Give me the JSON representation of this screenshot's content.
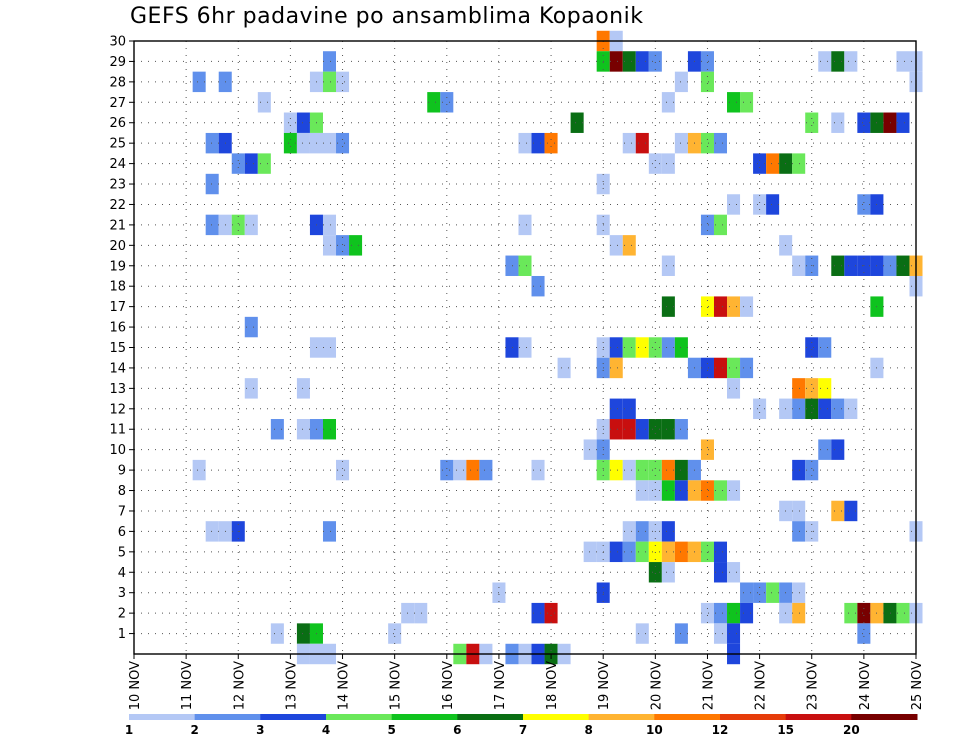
{
  "chart_data": {
    "type": "heatmap",
    "title": "GEFS 6hr padavine po ansamblima Kopaonik",
    "x_tick_labels": [
      "10 NOV",
      "11 NOV",
      "12 NOV",
      "13 NOV",
      "14 NOV",
      "15 NOV",
      "16 NOV",
      "17 NOV",
      "18 NOV",
      "19 NOV",
      "20 NOV",
      "21 NOV",
      "22 NOV",
      "23 NOV",
      "24 NOV",
      "25 NOV"
    ],
    "y_tick_labels": [
      "1",
      "2",
      "3",
      "4",
      "5",
      "6",
      "7",
      "8",
      "9",
      "10",
      "11",
      "12",
      "13",
      "14",
      "15",
      "16",
      "17",
      "18",
      "19",
      "20",
      "21",
      "22",
      "23",
      "24",
      "25",
      "26",
      "27",
      "28",
      "29",
      "30"
    ],
    "x_range_days": [
      10,
      25
    ],
    "steps_per_day": 4,
    "y_range": [
      0,
      30
    ],
    "grid": "dotted",
    "colorbar": {
      "labels": [
        "1",
        "2",
        "3",
        "4",
        "5",
        "6",
        "7",
        "8",
        "10",
        "12",
        "15",
        "20"
      ],
      "colors": [
        "#b4c8f5",
        "#6090ec",
        "#1e46dc",
        "#6ae85a",
        "#0fc31e",
        "#0a6e14",
        "#ffff00",
        "#ffb432",
        "#ff7800",
        "#e63c0a",
        "#c80f0f",
        "#780000"
      ]
    },
    "cells": [
      {
        "member": 30,
        "x": [
          19.0
        ],
        "level": [
          9
        ]
      },
      {
        "member": 30,
        "x": [
          19.25
        ],
        "level": [
          1
        ]
      },
      {
        "member": 29,
        "x": [
          13.75
        ],
        "level": [
          2
        ]
      },
      {
        "member": 29,
        "x": [
          19.0,
          19.25,
          19.5,
          19.75,
          20.0
        ],
        "level": [
          5,
          12,
          6,
          3,
          2
        ]
      },
      {
        "member": 29,
        "x": [
          20.75,
          21.0
        ],
        "level": [
          3,
          2
        ]
      },
      {
        "member": 29,
        "x": [
          23.25,
          23.5,
          23.75
        ],
        "level": [
          1,
          6,
          1
        ]
      },
      {
        "member": 29,
        "x": [
          24.75,
          25.0
        ],
        "level": [
          1,
          1
        ]
      },
      {
        "member": 28,
        "x": [
          11.25,
          11.75
        ],
        "level": [
          2,
          2
        ]
      },
      {
        "member": 28,
        "x": [
          13.5,
          13.75,
          14.0
        ],
        "level": [
          1,
          4,
          1
        ]
      },
      {
        "member": 28,
        "x": [
          20.5
        ],
        "level": [
          1
        ]
      },
      {
        "member": 28,
        "x": [
          21.0
        ],
        "level": [
          4
        ]
      },
      {
        "member": 28,
        "x": [
          25.0
        ],
        "level": [
          1
        ]
      },
      {
        "member": 27,
        "x": [
          12.5
        ],
        "level": [
          1
        ]
      },
      {
        "member": 27,
        "x": [
          15.75,
          16.0
        ],
        "level": [
          5,
          2
        ]
      },
      {
        "member": 27,
        "x": [
          20.25
        ],
        "level": [
          1
        ]
      },
      {
        "member": 27,
        "x": [
          21.5,
          21.75
        ],
        "level": [
          5,
          4
        ]
      },
      {
        "member": 26,
        "x": [
          13.0,
          13.25,
          13.5
        ],
        "level": [
          1,
          3,
          4
        ]
      },
      {
        "member": 26,
        "x": [
          18.5
        ],
        "level": [
          6
        ]
      },
      {
        "member": 26,
        "x": [
          23.0
        ],
        "level": [
          4
        ]
      },
      {
        "member": 26,
        "x": [
          23.5,
          24.0,
          24.25,
          24.5,
          24.75
        ],
        "level": [
          1,
          3,
          6,
          12,
          3
        ]
      },
      {
        "member": 25,
        "x": [
          11.5,
          11.75
        ],
        "level": [
          2,
          3
        ]
      },
      {
        "member": 25,
        "x": [
          13.0,
          13.25,
          13.5,
          13.75,
          14.0
        ],
        "level": [
          5,
          1,
          1,
          1,
          2
        ]
      },
      {
        "member": 25,
        "x": [
          17.5,
          17.75,
          18.0
        ],
        "level": [
          1,
          3,
          9
        ]
      },
      {
        "member": 25,
        "x": [
          19.5,
          19.75
        ],
        "level": [
          1,
          11
        ]
      },
      {
        "member": 25,
        "x": [
          20.5,
          20.75,
          21.0,
          21.25
        ],
        "level": [
          1,
          8,
          4,
          2
        ]
      },
      {
        "member": 24,
        "x": [
          12.0,
          12.25,
          12.5
        ],
        "level": [
          2,
          3,
          4
        ]
      },
      {
        "member": 24,
        "x": [
          20.0,
          20.25
        ],
        "level": [
          1,
          1
        ]
      },
      {
        "member": 24,
        "x": [
          22.0,
          22.25,
          22.5,
          22.75
        ],
        "level": [
          3,
          9,
          6,
          4
        ]
      },
      {
        "member": 23,
        "x": [
          11.5
        ],
        "level": [
          2
        ]
      },
      {
        "member": 23,
        "x": [
          19.0
        ],
        "level": [
          1
        ]
      },
      {
        "member": 22,
        "x": [
          21.5
        ],
        "level": [
          1
        ]
      },
      {
        "member": 22,
        "x": [
          22.0,
          22.25
        ],
        "level": [
          1,
          3
        ]
      },
      {
        "member": 22,
        "x": [
          24.0,
          24.25
        ],
        "level": [
          2,
          3
        ]
      },
      {
        "member": 21,
        "x": [
          11.5,
          11.75,
          12.0,
          12.25
        ],
        "level": [
          2,
          1,
          4,
          1
        ]
      },
      {
        "member": 21,
        "x": [
          13.5,
          13.75
        ],
        "level": [
          3,
          1
        ]
      },
      {
        "member": 21,
        "x": [
          17.5
        ],
        "level": [
          1
        ]
      },
      {
        "member": 21,
        "x": [
          19.0
        ],
        "level": [
          1
        ]
      },
      {
        "member": 21,
        "x": [
          21.0,
          21.25
        ],
        "level": [
          2,
          4
        ]
      },
      {
        "member": 20,
        "x": [
          13.75,
          14.0,
          14.25
        ],
        "level": [
          1,
          2,
          5
        ]
      },
      {
        "member": 20,
        "x": [
          19.25,
          19.5
        ],
        "level": [
          1,
          8
        ]
      },
      {
        "member": 20,
        "x": [
          22.5
        ],
        "level": [
          1
        ]
      },
      {
        "member": 19,
        "x": [
          17.25,
          17.5
        ],
        "level": [
          2,
          4
        ]
      },
      {
        "member": 19,
        "x": [
          20.25
        ],
        "level": [
          1
        ]
      },
      {
        "member": 19,
        "x": [
          22.75,
          23.0
        ],
        "level": [
          1,
          2
        ]
      },
      {
        "member": 19,
        "x": [
          23.5,
          23.75,
          24.0,
          24.25,
          24.5,
          24.75,
          25.0
        ],
        "level": [
          6,
          3,
          3,
          3,
          2,
          6,
          8
        ]
      },
      {
        "member": 18,
        "x": [
          17.75
        ],
        "level": [
          2
        ]
      },
      {
        "member": 18,
        "x": [
          25.0
        ],
        "level": [
          1
        ]
      },
      {
        "member": 17,
        "x": [
          20.25
        ],
        "level": [
          6
        ]
      },
      {
        "member": 17,
        "x": [
          21.0,
          21.25,
          21.5,
          21.75
        ],
        "level": [
          7,
          11,
          8,
          1
        ]
      },
      {
        "member": 17,
        "x": [
          24.25
        ],
        "level": [
          5
        ]
      },
      {
        "member": 16,
        "x": [
          12.25
        ],
        "level": [
          2
        ]
      },
      {
        "member": 15,
        "x": [
          13.5,
          13.75
        ],
        "level": [
          1,
          1
        ]
      },
      {
        "member": 15,
        "x": [
          17.25,
          17.5
        ],
        "level": [
          3,
          1
        ]
      },
      {
        "member": 15,
        "x": [
          19.0,
          19.25,
          19.5,
          19.75,
          20.0
        ],
        "level": [
          1,
          3,
          4,
          7,
          4
        ]
      },
      {
        "member": 15,
        "x": [
          20.25,
          20.5
        ],
        "level": [
          2,
          5
        ]
      },
      {
        "member": 15,
        "x": [
          23.0,
          23.25
        ],
        "level": [
          3,
          2
        ]
      },
      {
        "member": 14,
        "x": [
          18.25
        ],
        "level": [
          1
        ]
      },
      {
        "member": 14,
        "x": [
          19.0,
          19.25
        ],
        "level": [
          2,
          8
        ]
      },
      {
        "member": 14,
        "x": [
          20.75,
          21.0,
          21.25,
          21.5,
          21.75
        ],
        "level": [
          2,
          3,
          11,
          4,
          2
        ]
      },
      {
        "member": 14,
        "x": [
          24.25
        ],
        "level": [
          1
        ]
      },
      {
        "member": 13,
        "x": [
          12.25
        ],
        "level": [
          1
        ]
      },
      {
        "member": 13,
        "x": [
          13.25
        ],
        "level": [
          1
        ]
      },
      {
        "member": 13,
        "x": [
          21.5
        ],
        "level": [
          1
        ]
      },
      {
        "member": 13,
        "x": [
          22.75,
          23.0,
          23.25
        ],
        "level": [
          9,
          8,
          7
        ]
      },
      {
        "member": 12,
        "x": [
          19.25,
          19.5
        ],
        "level": [
          3,
          3
        ]
      },
      {
        "member": 12,
        "x": [
          22.0
        ],
        "level": [
          1
        ]
      },
      {
        "member": 12,
        "x": [
          22.5,
          22.75,
          23.0,
          23.25,
          23.5,
          23.75
        ],
        "level": [
          1,
          2,
          6,
          3,
          2,
          1
        ]
      },
      {
        "member": 11,
        "x": [
          12.75
        ],
        "level": [
          2
        ]
      },
      {
        "member": 11,
        "x": [
          13.25,
          13.5,
          13.75
        ],
        "level": [
          1,
          2,
          5
        ]
      },
      {
        "member": 11,
        "x": [
          19.0,
          19.25,
          19.5,
          19.75,
          20.0,
          20.25,
          20.5
        ],
        "level": [
          1,
          11,
          11,
          3,
          6,
          6,
          2
        ]
      },
      {
        "member": 10,
        "x": [
          18.75,
          19.0
        ],
        "level": [
          1,
          2
        ]
      },
      {
        "member": 10,
        "x": [
          21.0
        ],
        "level": [
          8
        ]
      },
      {
        "member": 10,
        "x": [
          23.25,
          23.5
        ],
        "level": [
          2,
          3
        ]
      },
      {
        "member": 9,
        "x": [
          11.25
        ],
        "level": [
          1
        ]
      },
      {
        "member": 9,
        "x": [
          14.0
        ],
        "level": [
          1
        ]
      },
      {
        "member": 9,
        "x": [
          16.0,
          16.25,
          16.5,
          16.75
        ],
        "level": [
          2,
          1,
          9,
          2
        ]
      },
      {
        "member": 9,
        "x": [
          17.75
        ],
        "level": [
          1
        ]
      },
      {
        "member": 9,
        "x": [
          19.0,
          19.25,
          19.5
        ],
        "level": [
          4,
          7,
          1
        ]
      },
      {
        "member": 9,
        "x": [
          19.75,
          20.0,
          20.25,
          20.5,
          20.75
        ],
        "level": [
          4,
          4,
          9,
          6,
          2
        ]
      },
      {
        "member": 9,
        "x": [
          22.75,
          23.0
        ],
        "level": [
          3,
          2
        ]
      },
      {
        "member": 8,
        "x": [
          19.75,
          20.0,
          20.25,
          20.5,
          20.75,
          21.0,
          21.25,
          21.5
        ],
        "level": [
          1,
          1,
          5,
          3,
          8,
          9,
          4,
          1
        ]
      },
      {
        "member": 7,
        "x": [
          22.5,
          22.75
        ],
        "level": [
          1,
          1
        ]
      },
      {
        "member": 7,
        "x": [
          23.5,
          23.75
        ],
        "level": [
          8,
          3
        ]
      },
      {
        "member": 6,
        "x": [
          11.5,
          11.75,
          12.0
        ],
        "level": [
          1,
          1,
          3
        ]
      },
      {
        "member": 6,
        "x": [
          13.75
        ],
        "level": [
          2
        ]
      },
      {
        "member": 6,
        "x": [
          19.5,
          19.75
        ],
        "level": [
          1,
          2
        ]
      },
      {
        "member": 6,
        "x": [
          20.0,
          20.25
        ],
        "level": [
          1,
          3
        ]
      },
      {
        "member": 6,
        "x": [
          22.75,
          23.0
        ],
        "level": [
          2,
          1
        ]
      },
      {
        "member": 6,
        "x": [
          25.0
        ],
        "level": [
          1
        ]
      },
      {
        "member": 5,
        "x": [
          18.75,
          19.0,
          19.25,
          19.5
        ],
        "level": [
          1,
          1,
          3,
          2
        ]
      },
      {
        "member": 5,
        "x": [
          19.75
        ],
        "level": [
          4
        ]
      },
      {
        "member": 5,
        "x": [
          20.0,
          20.25,
          20.5,
          20.75,
          21.0
        ],
        "level": [
          7,
          8,
          9,
          8,
          4
        ]
      },
      {
        "member": 5,
        "x": [
          21.25
        ],
        "level": [
          3
        ]
      },
      {
        "member": 4,
        "x": [
          20.0
        ],
        "level": [
          6
        ]
      },
      {
        "member": 4,
        "x": [
          20.25
        ],
        "level": [
          1
        ]
      },
      {
        "member": 4,
        "x": [
          21.25,
          21.5
        ],
        "level": [
          3,
          1
        ]
      },
      {
        "member": 3,
        "x": [
          17.0
        ],
        "level": [
          1
        ]
      },
      {
        "member": 3,
        "x": [
          19.0
        ],
        "level": [
          3
        ]
      },
      {
        "member": 3,
        "x": [
          21.75,
          22.0,
          22.25,
          22.5,
          22.75
        ],
        "level": [
          2,
          2,
          4,
          2,
          1
        ]
      },
      {
        "member": 2,
        "x": [
          15.25,
          15.5
        ],
        "level": [
          1,
          1
        ]
      },
      {
        "member": 2,
        "x": [
          17.75,
          18.0
        ],
        "level": [
          3,
          11
        ]
      },
      {
        "member": 2,
        "x": [
          21.0,
          21.25
        ],
        "level": [
          1,
          2
        ]
      },
      {
        "member": 2,
        "x": [
          21.5,
          21.75
        ],
        "level": [
          5,
          3
        ]
      },
      {
        "member": 2,
        "x": [
          22.5,
          22.75
        ],
        "level": [
          1,
          8
        ]
      },
      {
        "member": 2,
        "x": [
          23.75,
          24.0,
          24.25,
          24.5,
          24.75,
          25.0
        ],
        "level": [
          4,
          12,
          8,
          6,
          4,
          1
        ]
      },
      {
        "member": 1,
        "x": [
          12.75
        ],
        "level": [
          1
        ]
      },
      {
        "member": 1,
        "x": [
          13.25,
          13.5
        ],
        "level": [
          6,
          5
        ]
      },
      {
        "member": 1,
        "x": [
          15.0
        ],
        "level": [
          1
        ]
      },
      {
        "member": 1,
        "x": [
          19.75
        ],
        "level": [
          1
        ]
      },
      {
        "member": 1,
        "x": [
          20.5
        ],
        "level": [
          2
        ]
      },
      {
        "member": 1,
        "x": [
          21.25,
          21.5
        ],
        "level": [
          1,
          3
        ]
      },
      {
        "member": 1,
        "x": [
          24.0
        ],
        "level": [
          2
        ]
      },
      {
        "member": 0,
        "x": [
          13.25,
          13.5,
          13.75
        ],
        "level": [
          1,
          1,
          1
        ]
      },
      {
        "member": 0,
        "x": [
          16.25,
          16.5,
          16.75
        ],
        "level": [
          4,
          11,
          1
        ]
      },
      {
        "member": 0,
        "x": [
          17.25,
          17.5,
          17.75,
          18.0,
          18.25
        ],
        "level": [
          2,
          1,
          3,
          6,
          1
        ]
      },
      {
        "member": 0,
        "x": [
          21.5
        ],
        "level": [
          3
        ]
      }
    ]
  }
}
